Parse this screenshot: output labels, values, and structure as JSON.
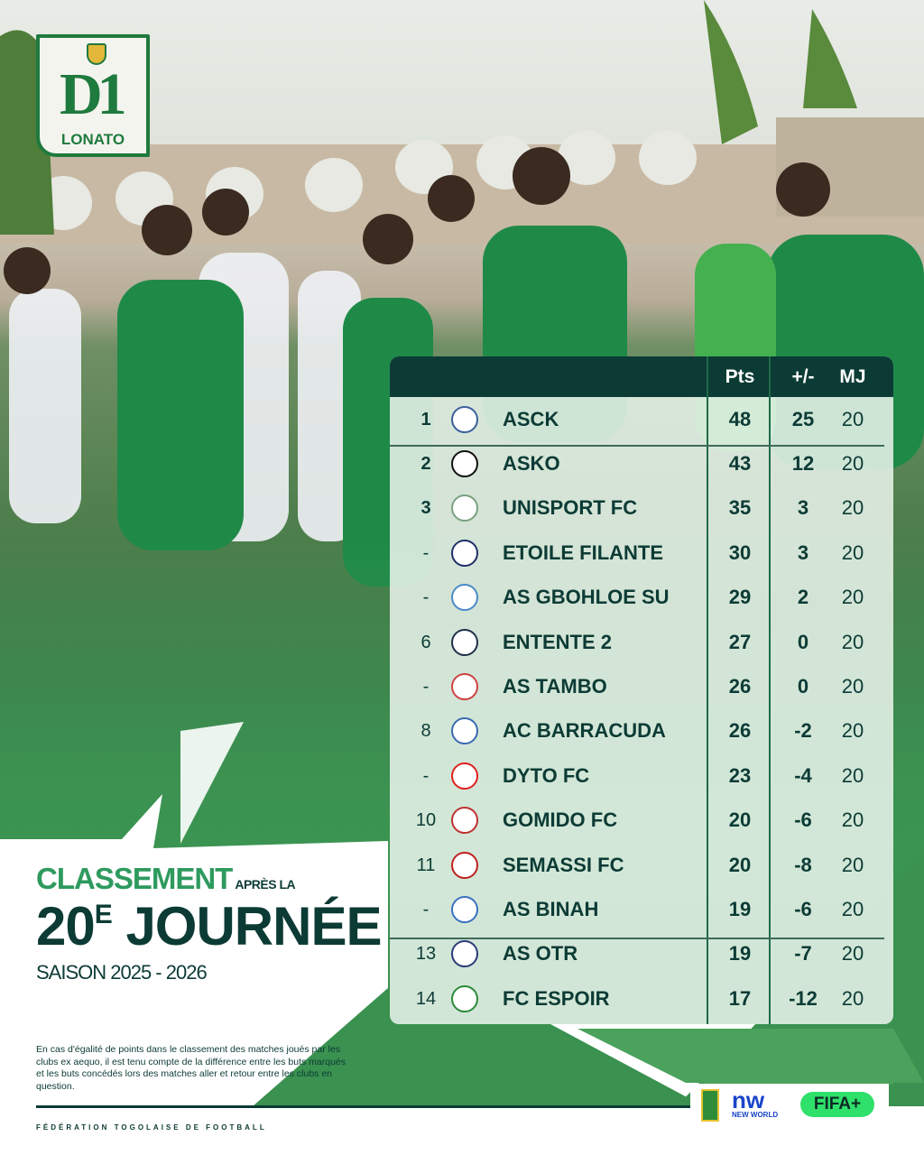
{
  "brand": {
    "logo_text": "D1",
    "logo_sub": "LONATO"
  },
  "table": {
    "headers": {
      "pts": "Pts",
      "gd": "+/-",
      "mj": "MJ"
    },
    "rows": [
      {
        "rank": "1",
        "team": "ASCK",
        "pts": "48",
        "gd": "25",
        "mj": "20"
      },
      {
        "rank": "2",
        "team": "ASKO",
        "pts": "43",
        "gd": "12",
        "mj": "20"
      },
      {
        "rank": "3",
        "team": "UNISPORT FC",
        "pts": "35",
        "gd": "3",
        "mj": "20"
      },
      {
        "rank": "-",
        "team": "ETOILE FILANTE",
        "pts": "30",
        "gd": "3",
        "mj": "20"
      },
      {
        "rank": "-",
        "team": "AS GBOHLOE SU",
        "pts": "29",
        "gd": "2",
        "mj": "20"
      },
      {
        "rank": "6",
        "team": "ENTENTE 2",
        "pts": "27",
        "gd": "0",
        "mj": "20"
      },
      {
        "rank": "-",
        "team": "AS TAMBO",
        "pts": "26",
        "gd": "0",
        "mj": "20"
      },
      {
        "rank": "8",
        "team": "AC BARRACUDA",
        "pts": "26",
        "gd": "-2",
        "mj": "20"
      },
      {
        "rank": "-",
        "team": "DYTO FC",
        "pts": "23",
        "gd": "-4",
        "mj": "20"
      },
      {
        "rank": "10",
        "team": "GOMIDO FC",
        "pts": "20",
        "gd": "-6",
        "mj": "20"
      },
      {
        "rank": "11",
        "team": "SEMASSI FC",
        "pts": "20",
        "gd": "-8",
        "mj": "20"
      },
      {
        "rank": "-",
        "team": "AS BINAH",
        "pts": "19",
        "gd": "-6",
        "mj": "20"
      },
      {
        "rank": "13",
        "team": "AS OTR",
        "pts": "19",
        "gd": "-7",
        "mj": "20"
      },
      {
        "rank": "14",
        "team": "FC ESPOIR",
        "pts": "17",
        "gd": "-12",
        "mj": "20"
      }
    ]
  },
  "title": {
    "line1": "CLASSEMENT",
    "line1_small": "APRÈS LA",
    "number": "20",
    "sup": "E",
    "line2": "JOURNÉE",
    "season": "SAISON 2025 - 2026"
  },
  "note": "En cas d'égalité de points dans le classement des matches joués par les clubs ex aequo, il est tenu compte de la différence entre les buts marqués et les buts concédés lors des matches aller et retour entre les clubs en question.",
  "footer": {
    "federation": "FÉDÉRATION TOGOLAISE DE FOOTBALL"
  },
  "sponsors": {
    "nw": "nw",
    "nw_sub": "NEW WORLD",
    "fifa": "FIFA+"
  },
  "colors": {
    "dark": "#0c3b35",
    "green": "#2e9a5e",
    "accent": "#1f7a3d"
  }
}
